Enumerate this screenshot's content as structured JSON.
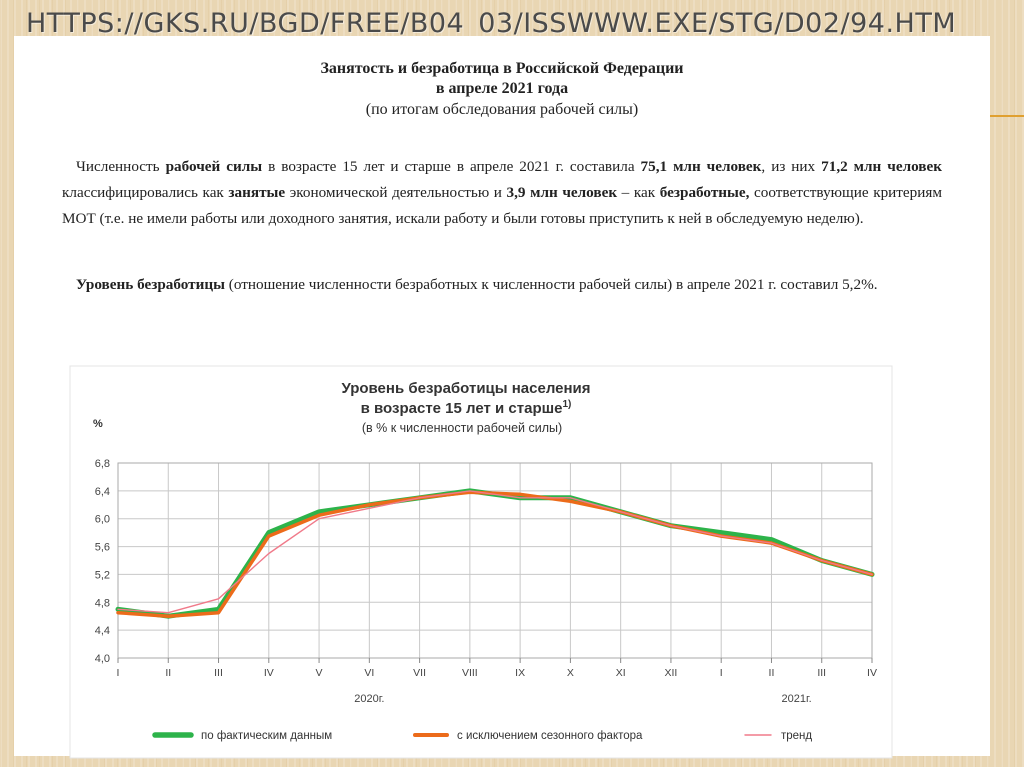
{
  "header": {
    "url": "HTTPS://GKS.RU/BGD/FREE/B04_03/ISSWWW.EXE/STG/D02/94.HTM"
  },
  "document": {
    "title_line1": "Занятость и безработица в Российской Федерации",
    "title_line2": "в апреле 2021 года",
    "title_line3": "(по итогам обследования рабочей силы)",
    "paragraph1": {
      "t1": "Численность ",
      "b1": "рабочей силы",
      "t2": " в возрасте 15 лет и старше в апреле 2021 г. составила ",
      "b2": "75,1 млн человек",
      "t3": ", из них ",
      "b3": "71,2 млн человек",
      "t4": " классифицировались как ",
      "b4": "занятые",
      "t5": " экономической деятельностью и ",
      "b5": "3,9 млн человек",
      "t6": " – как ",
      "b6": "безработные,",
      "t7": " соответствующие критериям МОТ (т.е. не имели работы или доходного занятия, искали работу и были готовы приступить к ней в обследуемую неделю)."
    },
    "paragraph2": {
      "b1": "Уровень безработицы",
      "t1": " (отношение численности безработных к численности рабочей силы) в апреле 2021 г. составил 5,2%."
    }
  },
  "colors": {
    "actual": "#2db34a",
    "seasonal": "#ec6b1a",
    "trend": "#f07a8a",
    "grid": "#c8c8c8"
  },
  "chart_data": {
    "type": "line",
    "title": "Уровень безработицы населения",
    "subtitle": "в возрасте 15 лет и старше",
    "title_footnote": "1)",
    "note": "(в % к численности рабочей силы)",
    "ylabel": "%",
    "ylim": [
      4.0,
      6.8
    ],
    "yticks": [
      "4,0",
      "4,4",
      "4,8",
      "5,2",
      "5,6",
      "6,0",
      "6,4",
      "6,8"
    ],
    "categories": [
      "I",
      "II",
      "III",
      "IV",
      "V",
      "VI",
      "VII",
      "VIII",
      "IX",
      "X",
      "XI",
      "XII",
      "I",
      "II",
      "III",
      "IV"
    ],
    "year_labels": [
      {
        "text": "2020г.",
        "at": 5
      },
      {
        "text": "2021г.",
        "at": 13.5
      }
    ],
    "grid": true,
    "legend_position": "bottom",
    "series": [
      {
        "name": "по фактическим данным",
        "color": "#2db34a",
        "values": [
          4.7,
          4.6,
          4.7,
          5.8,
          6.1,
          6.2,
          6.3,
          6.4,
          6.3,
          6.3,
          6.1,
          5.9,
          5.8,
          5.7,
          5.4,
          5.2
        ]
      },
      {
        "name": "с исключением сезонного фактора",
        "color": "#ec6b1a",
        "values": [
          4.65,
          4.6,
          4.65,
          5.75,
          6.05,
          6.2,
          6.3,
          6.38,
          6.35,
          6.25,
          6.1,
          5.9,
          5.75,
          5.65,
          5.4,
          5.2
        ]
      },
      {
        "name": "тренд",
        "color": "#f07a8a",
        "values": [
          4.7,
          4.65,
          4.85,
          5.5,
          6.0,
          6.15,
          6.3,
          6.4,
          6.3,
          6.3,
          6.1,
          5.9,
          5.75,
          5.65,
          5.4,
          5.2
        ]
      }
    ]
  }
}
